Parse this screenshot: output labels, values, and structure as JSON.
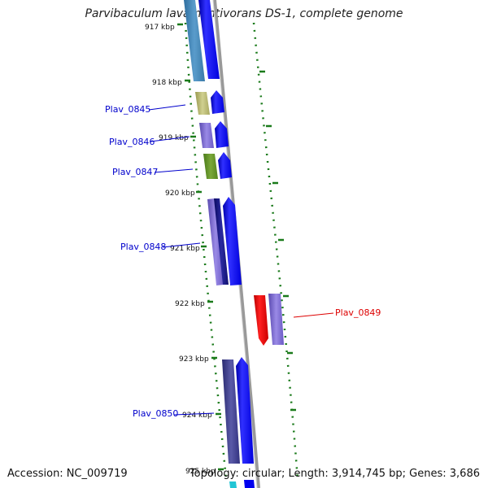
{
  "title": "Parvibaculum lavamentivorans DS-1, complete genome",
  "footer": {
    "accession_label": "Accession:",
    "accession": "NC_009719",
    "topology_text": "Topology: circular; Length: 3,914,745 bp; Genes: 3,686"
  },
  "colors": {
    "tick": "#1a7a1a",
    "backbone": "#888888",
    "label_blue": "#0000cc",
    "label_red": "#dd0000",
    "arrow_blue": "#0000ff",
    "arrow_red": "#ff0000"
  },
  "kbp_labels": [
    "917 kbp",
    "918 kbp",
    "919 kbp",
    "920 kbp",
    "921 kbp",
    "922 kbp",
    "923 kbp",
    "924 kbp",
    "925 kbp"
  ],
  "genes": [
    {
      "label": "Plav_0845",
      "color": "#0000cc"
    },
    {
      "label": "Plav_0846",
      "color": "#0000cc"
    },
    {
      "label": "Plav_0847",
      "color": "#0000cc"
    },
    {
      "label": "Plav_0848",
      "color": "#0000cc"
    },
    {
      "label": "Plav_0849",
      "color": "#dd0000"
    },
    {
      "label": "Plav_0850",
      "color": "#0000cc"
    }
  ]
}
